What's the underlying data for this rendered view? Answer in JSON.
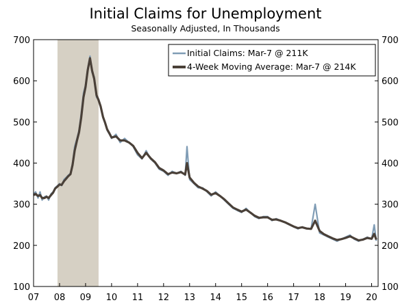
{
  "chart_data": {
    "type": "line",
    "title": "Initial Claims for Unemployment",
    "subtitle": "Seasonally Adjusted, In Thousands",
    "xlabel": "",
    "ylabel": "",
    "xlim": [
      2007.0,
      2020.25
    ],
    "ylim": [
      100,
      700
    ],
    "y_ticks": [
      100,
      200,
      300,
      400,
      500,
      600,
      700
    ],
    "y_tick_labels": [
      "100",
      "200",
      "300",
      "400",
      "500",
      "600",
      "700"
    ],
    "x_ticks": [
      2007,
      2008,
      2009,
      2010,
      2011,
      2012,
      2013,
      2014,
      2015,
      2016,
      2017,
      2018,
      2019,
      2020
    ],
    "x_tick_labels": [
      "07",
      "08",
      "09",
      "10",
      "11",
      "12",
      "13",
      "14",
      "15",
      "16",
      "17",
      "18",
      "19",
      "20"
    ],
    "recession": {
      "start": 2007.92,
      "end": 2009.5,
      "color": "#d6d0c4"
    },
    "grid": false,
    "legend_position": "top-right",
    "colors": {
      "initial_claims": "#7f9cb5",
      "moving_average": "#4a4038"
    },
    "series": [
      {
        "name": "Initial Claims: Mar-7 @ 211K",
        "x": [
          2007.0,
          2007.08,
          2007.17,
          2007.25,
          2007.33,
          2007.42,
          2007.5,
          2007.58,
          2007.67,
          2007.75,
          2007.83,
          2007.92,
          2008.0,
          2008.08,
          2008.17,
          2008.25,
          2008.33,
          2008.42,
          2008.5,
          2008.58,
          2008.67,
          2008.75,
          2008.83,
          2008.92,
          2009.0,
          2009.08,
          2009.17,
          2009.25,
          2009.33,
          2009.42,
          2009.5,
          2009.58,
          2009.67,
          2009.75,
          2009.83,
          2009.92,
          2010.0,
          2010.17,
          2010.33,
          2010.5,
          2010.67,
          2010.83,
          2011.0,
          2011.17,
          2011.33,
          2011.5,
          2011.67,
          2011.83,
          2012.0,
          2012.17,
          2012.33,
          2012.5,
          2012.67,
          2012.83,
          2012.9,
          2013.0,
          2013.17,
          2013.33,
          2013.5,
          2013.67,
          2013.83,
          2014.0,
          2014.17,
          2014.33,
          2014.5,
          2014.67,
          2014.83,
          2015.0,
          2015.17,
          2015.33,
          2015.5,
          2015.67,
          2015.83,
          2016.0,
          2016.17,
          2016.33,
          2016.5,
          2016.67,
          2016.83,
          2017.0,
          2017.17,
          2017.33,
          2017.5,
          2017.67,
          2017.83,
          2018.0,
          2018.17,
          2018.33,
          2018.5,
          2018.67,
          2018.83,
          2019.0,
          2019.17,
          2019.33,
          2019.5,
          2019.67,
          2019.83,
          2020.0,
          2020.1,
          2020.18
        ],
        "values": [
          325,
          330,
          315,
          330,
          310,
          318,
          320,
          310,
          325,
          330,
          340,
          345,
          350,
          345,
          360,
          365,
          370,
          375,
          400,
          440,
          460,
          480,
          520,
          570,
          590,
          630,
          660,
          620,
          610,
          560,
          555,
          540,
          510,
          500,
          480,
          470,
          460,
          470,
          450,
          460,
          450,
          440,
          420,
          410,
          430,
          410,
          400,
          385,
          380,
          370,
          380,
          375,
          380,
          370,
          440,
          360,
          350,
          340,
          340,
          330,
          320,
          330,
          320,
          310,
          300,
          290,
          285,
          280,
          290,
          280,
          270,
          265,
          270,
          270,
          260,
          265,
          260,
          255,
          250,
          245,
          240,
          245,
          240,
          240,
          300,
          230,
          225,
          220,
          215,
          210,
          215,
          220,
          225,
          215,
          210,
          215,
          220,
          215,
          250,
          211
        ]
      },
      {
        "name": "4-Week Moving Average: Mar-7 @ 214K",
        "x": [
          2007.0,
          2007.08,
          2007.17,
          2007.25,
          2007.33,
          2007.42,
          2007.5,
          2007.58,
          2007.67,
          2007.75,
          2007.83,
          2007.92,
          2008.0,
          2008.08,
          2008.17,
          2008.25,
          2008.33,
          2008.42,
          2008.5,
          2008.58,
          2008.67,
          2008.75,
          2008.83,
          2008.92,
          2009.0,
          2009.08,
          2009.17,
          2009.25,
          2009.33,
          2009.42,
          2009.5,
          2009.58,
          2009.67,
          2009.75,
          2009.83,
          2009.92,
          2010.0,
          2010.17,
          2010.33,
          2010.5,
          2010.67,
          2010.83,
          2011.0,
          2011.17,
          2011.33,
          2011.5,
          2011.67,
          2011.83,
          2012.0,
          2012.17,
          2012.33,
          2012.5,
          2012.67,
          2012.83,
          2012.9,
          2013.0,
          2013.17,
          2013.33,
          2013.5,
          2013.67,
          2013.83,
          2014.0,
          2014.17,
          2014.33,
          2014.5,
          2014.67,
          2014.83,
          2015.0,
          2015.17,
          2015.33,
          2015.5,
          2015.67,
          2015.83,
          2016.0,
          2016.17,
          2016.33,
          2016.5,
          2016.67,
          2016.83,
          2017.0,
          2017.17,
          2017.33,
          2017.5,
          2017.67,
          2017.83,
          2018.0,
          2018.17,
          2018.33,
          2018.5,
          2018.67,
          2018.83,
          2019.0,
          2019.17,
          2019.33,
          2019.5,
          2019.67,
          2019.83,
          2020.0,
          2020.1,
          2020.18
        ],
        "values": [
          322,
          325,
          320,
          322,
          315,
          315,
          318,
          315,
          322,
          328,
          338,
          343,
          348,
          347,
          356,
          362,
          368,
          373,
          395,
          430,
          455,
          475,
          510,
          560,
          585,
          625,
          655,
          625,
          605,
          565,
          553,
          538,
          512,
          498,
          482,
          472,
          462,
          465,
          455,
          455,
          450,
          442,
          425,
          412,
          425,
          412,
          402,
          388,
          382,
          373,
          377,
          375,
          378,
          372,
          400,
          365,
          352,
          343,
          338,
          332,
          323,
          327,
          320,
          312,
          302,
          292,
          287,
          282,
          287,
          280,
          272,
          267,
          268,
          268,
          262,
          263,
          260,
          256,
          251,
          246,
          242,
          244,
          241,
          240,
          260,
          235,
          227,
          222,
          217,
          213,
          215,
          218,
          222,
          217,
          212,
          214,
          218,
          216,
          228,
          214
        ]
      }
    ]
  }
}
